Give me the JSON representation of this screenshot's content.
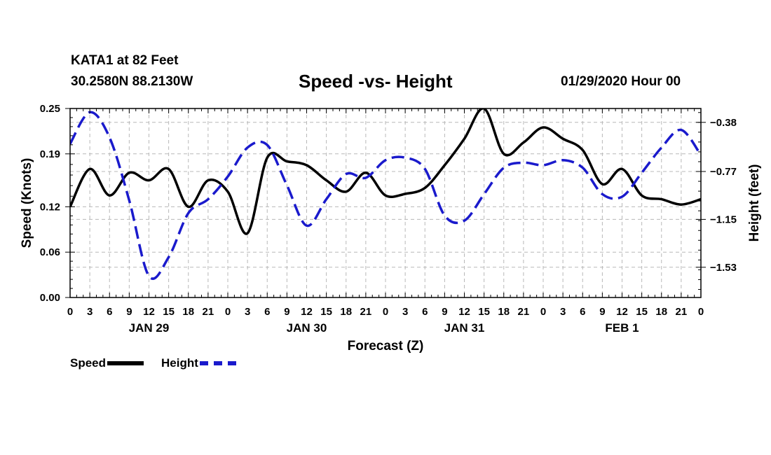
{
  "header": {
    "station": "KATA1 at 82 Feet",
    "coords": "30.2580N 88.2130W",
    "title": "Speed -vs- Height",
    "run_time": "01/29/2020 Hour 00"
  },
  "legend": {
    "speed": "Speed",
    "height": "Height"
  },
  "chart_data": {
    "type": "line",
    "title": "Speed -vs- Height",
    "xlabel": "Forecast (Z)",
    "ylabel_left": "Speed (Knots)",
    "ylabel_right": "Height (feet)",
    "x_range_hours": [
      0,
      96
    ],
    "x_ticks": [
      "0",
      "3",
      "6",
      "9",
      "12",
      "15",
      "18",
      "21",
      "0",
      "3",
      "6",
      "9",
      "12",
      "15",
      "18",
      "21",
      "0",
      "3",
      "6",
      "9",
      "12",
      "15",
      "18",
      "21",
      "0",
      "3",
      "6",
      "9",
      "12",
      "15",
      "18",
      "21",
      "0"
    ],
    "date_labels": [
      {
        "label": "JAN 29",
        "hour": 12
      },
      {
        "label": "JAN 30",
        "hour": 36
      },
      {
        "label": "JAN 31",
        "hour": 60
      },
      {
        "label": "FEB 1",
        "hour": 84
      }
    ],
    "y_left": {
      "range": [
        0.0,
        0.25
      ],
      "ticks": [
        "0.00",
        "0.06",
        "0.12",
        "0.19",
        "0.25"
      ]
    },
    "y_right": {
      "range": [
        -1.77,
        -0.27
      ],
      "ticks": [
        "-0.38",
        "-0.77",
        "-1.15",
        "-1.53"
      ]
    },
    "grid": true,
    "series": [
      {
        "name": "Speed",
        "axis": "left",
        "color": "#000000",
        "style": "solid",
        "x": [
          0,
          3,
          6,
          9,
          12,
          15,
          18,
          21,
          24,
          27,
          30,
          33,
          36,
          39,
          42,
          45,
          48,
          51,
          54,
          57,
          60,
          63,
          66,
          69,
          72,
          75,
          78,
          81,
          84,
          87,
          90,
          93,
          96
        ],
        "y": [
          0.12,
          0.17,
          0.135,
          0.165,
          0.155,
          0.17,
          0.12,
          0.155,
          0.14,
          0.085,
          0.185,
          0.18,
          0.175,
          0.155,
          0.14,
          0.165,
          0.135,
          0.137,
          0.145,
          0.175,
          0.21,
          0.25,
          0.19,
          0.205,
          0.225,
          0.21,
          0.195,
          0.15,
          0.17,
          0.135,
          0.13,
          0.123,
          0.13
        ]
      },
      {
        "name": "Height",
        "axis": "right",
        "color": "#1a1acc",
        "style": "dashed",
        "x": [
          0,
          3,
          6,
          9,
          12,
          15,
          18,
          21,
          24,
          27,
          30,
          33,
          36,
          39,
          42,
          45,
          48,
          51,
          54,
          57,
          60,
          63,
          66,
          69,
          72,
          75,
          78,
          81,
          84,
          87,
          90,
          93,
          96
        ],
        "y": [
          -0.55,
          -0.3,
          -0.5,
          -1.0,
          -1.6,
          -1.45,
          -1.1,
          -0.99,
          -0.81,
          -0.58,
          -0.56,
          -0.88,
          -1.2,
          -0.99,
          -0.79,
          -0.82,
          -0.68,
          -0.66,
          -0.75,
          -1.12,
          -1.16,
          -0.95,
          -0.74,
          -0.7,
          -0.72,
          -0.68,
          -0.74,
          -0.95,
          -0.97,
          -0.78,
          -0.58,
          -0.44,
          -0.64
        ]
      }
    ]
  }
}
